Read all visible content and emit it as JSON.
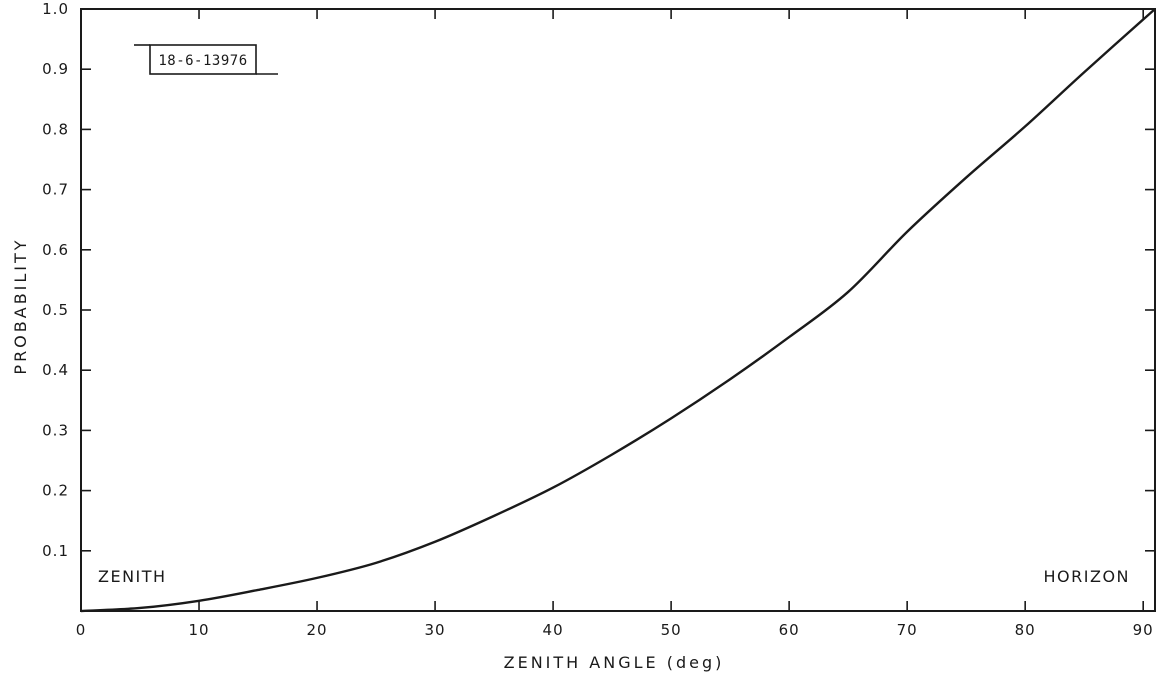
{
  "chart_data": {
    "type": "line",
    "title": "",
    "xlabel": "ZENITH ANGLE (deg)",
    "ylabel": "PROBABILITY",
    "xlim": [
      0,
      91
    ],
    "ylim": [
      0,
      1.0
    ],
    "x_ticks": [
      0,
      10,
      20,
      30,
      40,
      50,
      60,
      70,
      80,
      90
    ],
    "x_tick_labels": [
      "0",
      "10",
      "20",
      "30",
      "40",
      "50",
      "60",
      "70",
      "80",
      "90"
    ],
    "y_ticks": [
      0.1,
      0.2,
      0.3,
      0.4,
      0.5,
      0.6,
      0.7,
      0.8,
      0.9,
      1.0
    ],
    "y_tick_labels": [
      "0.1",
      "0.2",
      "0.3",
      "0.4",
      "0.5",
      "0.6",
      "0.7",
      "0.8",
      "0.9",
      "1.0"
    ],
    "grid": false,
    "legend": "none",
    "series": [
      {
        "x": [
          0,
          5,
          10,
          15,
          20,
          25,
          30,
          35,
          40,
          45,
          50,
          55,
          60,
          65,
          70,
          75,
          80,
          85,
          91
        ],
        "y": [
          0.0,
          0.005,
          0.017,
          0.035,
          0.055,
          0.08,
          0.115,
          0.158,
          0.205,
          0.26,
          0.32,
          0.385,
          0.455,
          0.53,
          0.63,
          0.72,
          0.805,
          0.895,
          1.0
        ]
      }
    ],
    "annotations": {
      "left": "ZENITH",
      "right": "HORIZON",
      "figure_id": "18-6-13976"
    }
  },
  "colors": {
    "ink": "#1a1a1a",
    "background": "#ffffff"
  }
}
